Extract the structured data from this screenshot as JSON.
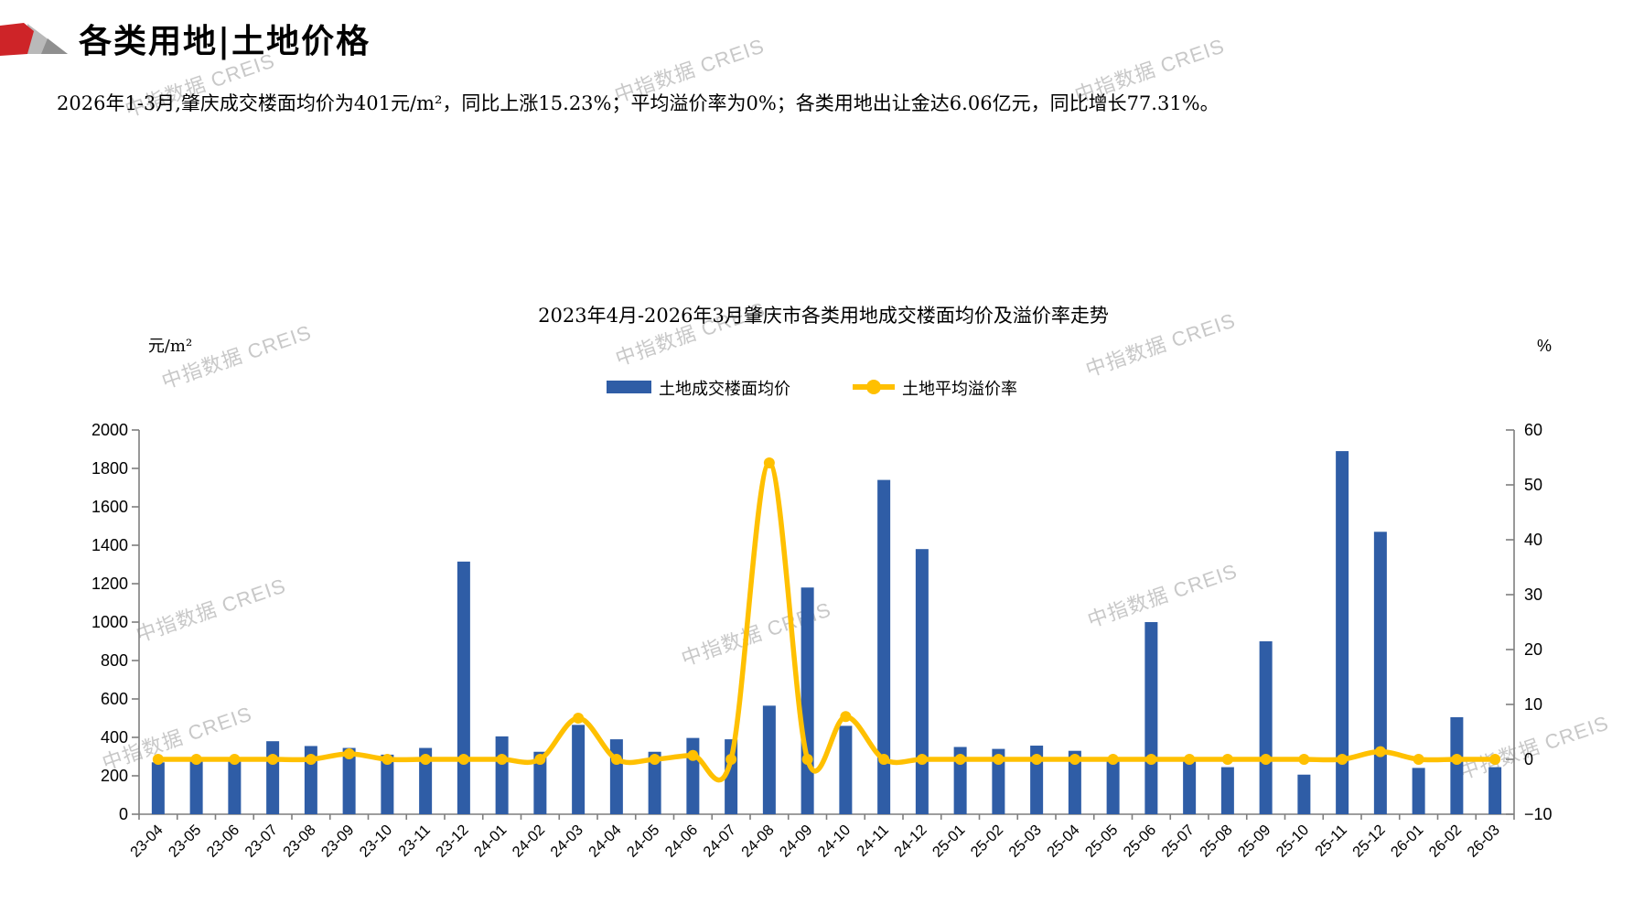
{
  "header": {
    "title": "各类用地|土地价格",
    "subtitle": "2026年1-3月,肇庆成交楼面均价为401元/m²，同比上涨15.23%；平均溢价率为0%；各类用地出让金达6.06亿元，同比增长77.31%。"
  },
  "watermark": "中指数据 CREIS",
  "colors": {
    "bar": "#2F5DA6",
    "line": "#FFC000",
    "axis": "#7F7F7F",
    "text": "#000000",
    "watermark": "#C8C8C8",
    "logo_red": "#CE2428",
    "logo_gray_light": "#B9B9B9",
    "logo_gray_dark": "#8F8F8F"
  },
  "chart_data": {
    "type": "bar",
    "title": "2023年4月-2026年3月肇庆市各类用地成交楼面均价及溢价率走势",
    "grid": false,
    "legend_position": "top-center",
    "categories": [
      "23-04",
      "23-05",
      "23-06",
      "23-07",
      "23-08",
      "23-09",
      "23-10",
      "23-11",
      "23-12",
      "24-01",
      "24-02",
      "24-03",
      "24-04",
      "24-05",
      "24-06",
      "24-07",
      "24-08",
      "24-09",
      "24-10",
      "24-11",
      "24-12",
      "25-01",
      "25-02",
      "25-03",
      "25-04",
      "25-05",
      "25-06",
      "25-07",
      "25-08",
      "25-09",
      "25-10",
      "25-11",
      "25-12",
      "26-01",
      "26-02",
      "26-03"
    ],
    "series": [
      {
        "name": "土地成交楼面均价",
        "type": "bar",
        "axis": "left",
        "values": [
          270,
          275,
          275,
          380,
          355,
          345,
          310,
          345,
          1315,
          405,
          325,
          465,
          390,
          325,
          397,
          390,
          565,
          1180,
          460,
          1740,
          1380,
          350,
          340,
          357,
          330,
          295,
          1000,
          290,
          245,
          900,
          206,
          1890,
          1470,
          241,
          505,
          245
        ]
      },
      {
        "name": "土地平均溢价率",
        "type": "line",
        "axis": "right",
        "values": [
          0,
          0,
          0,
          0,
          0,
          1,
          0,
          0,
          0,
          0,
          0,
          7.5,
          0,
          0,
          0.7,
          0,
          54,
          0,
          7.8,
          0,
          0,
          0,
          0,
          0,
          0,
          0,
          0,
          0,
          0,
          0,
          0,
          0,
          1.4,
          0,
          0,
          0
        ]
      }
    ],
    "left_axis": {
      "label": "元/m²",
      "min": 0,
      "max": 2000,
      "step": 200
    },
    "right_axis": {
      "label": "%",
      "min": -10,
      "max": 60,
      "step": 10
    }
  }
}
